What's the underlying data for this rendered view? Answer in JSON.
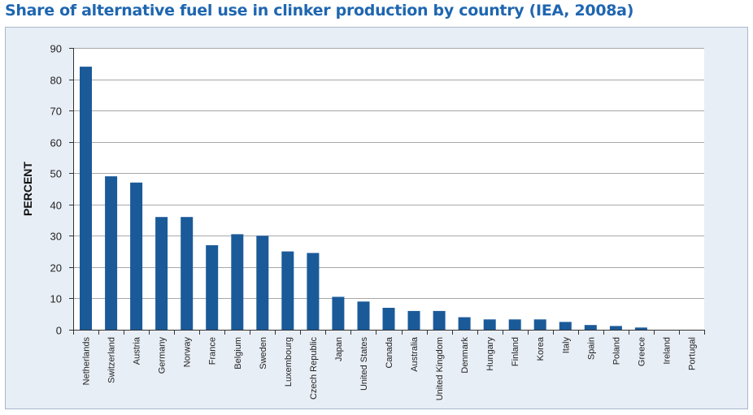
{
  "chart_data": {
    "type": "bar",
    "title": "Share of alternative fuel use in clinker production by country (IEA, 2008a)",
    "xlabel": "",
    "ylabel": "PERCENT",
    "ylim": [
      0,
      90
    ],
    "yticks": [
      0,
      10,
      20,
      30,
      40,
      50,
      60,
      70,
      80,
      90
    ],
    "grid": true,
    "legend": "none",
    "colors": {
      "bar": "#1a5a99",
      "title": "#1f66b0",
      "panel_background": "#e8eef6",
      "plot_background": "#ffffff",
      "gridline": "#a8a8a8",
      "axis": "#333333"
    },
    "categories": [
      "Netherlands",
      "Switzerland",
      "Austria",
      "Germany",
      "Norway",
      "France",
      "Belgium",
      "Sweden",
      "Luxembourg",
      "Czech Republic",
      "Japan",
      "United States",
      "Canada",
      "Australia",
      "United Kingdom",
      "Denmark",
      "Hungary",
      "Finland",
      "Korea",
      "Italy",
      "Spain",
      "Poland",
      "Greece",
      "Ireland",
      "Portugal"
    ],
    "values": [
      84,
      49,
      47,
      36,
      36,
      27,
      30.5,
      30,
      25,
      24.5,
      10.5,
      9,
      7,
      6,
      6,
      4,
      3.3,
      3.3,
      3.3,
      2.5,
      1.5,
      1.2,
      0.7,
      0,
      0
    ]
  }
}
